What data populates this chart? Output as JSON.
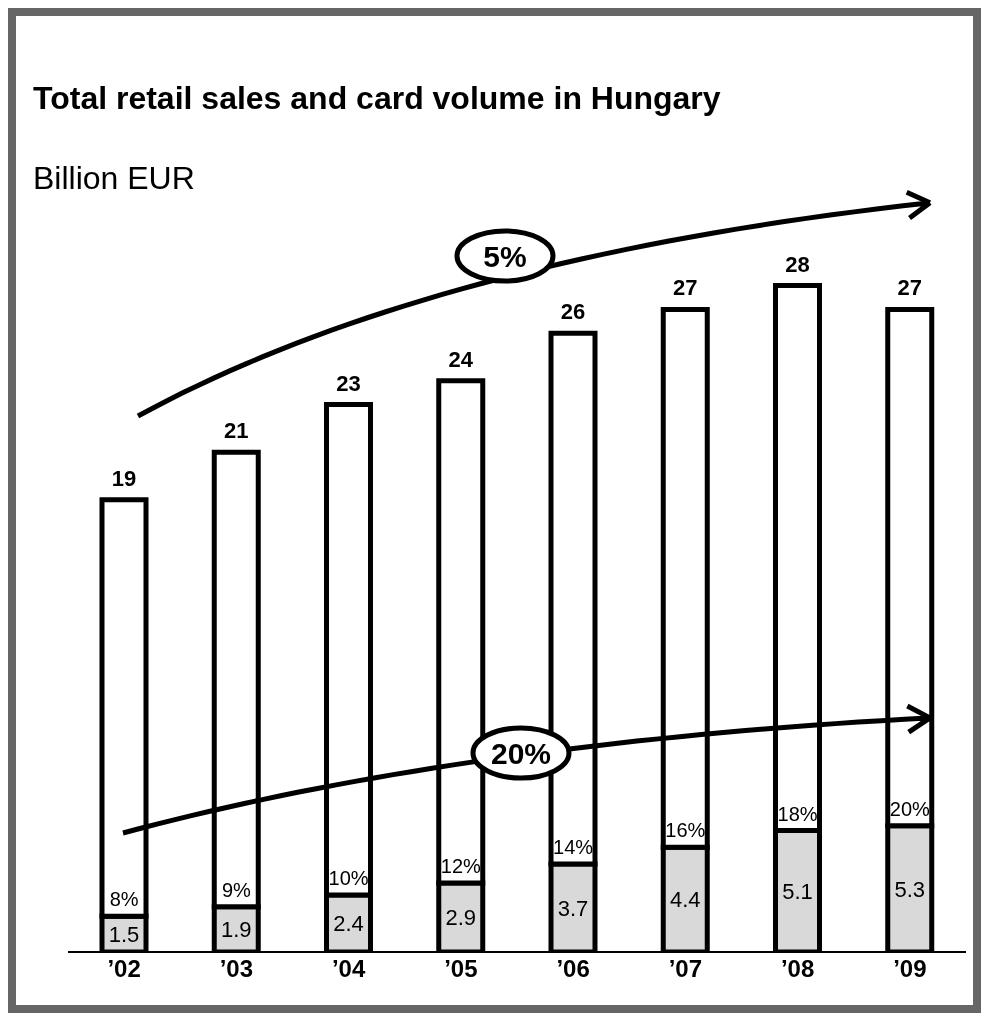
{
  "chart_data": {
    "type": "bar",
    "title": "Total retail sales and card volume in Hungary",
    "subtitle": "Billion EUR",
    "categories": [
      "’02",
      "’03",
      "’04",
      "’05",
      "’06",
      "’07",
      "’08",
      "’09"
    ],
    "stacked": true,
    "series": [
      {
        "color": "#d9d9d9",
        "values": [
          1.5,
          1.9,
          2.4,
          2.9,
          3.7,
          4.4,
          5.1,
          5.3
        ],
        "value_labels": [
          "1.5",
          "1.9",
          "2.4",
          "2.9",
          "3.7",
          "4.4",
          "5.1",
          "5.3"
        ]
      },
      {
        "color": "#ffffff",
        "values": [
          17.5,
          19.1,
          20.6,
          21.1,
          22.3,
          22.6,
          22.9,
          21.7
        ]
      }
    ],
    "totals": [
      "19",
      "21",
      "23",
      "24",
      "26",
      "27",
      "28",
      "27"
    ],
    "tick_labels": "x",
    "legend": false,
    "grid": false,
    "annotations": [
      "5%",
      "20%",
      "8%",
      "9%",
      "10%",
      "12%",
      "14%",
      "16%",
      "18%",
      "20%"
    ]
  }
}
